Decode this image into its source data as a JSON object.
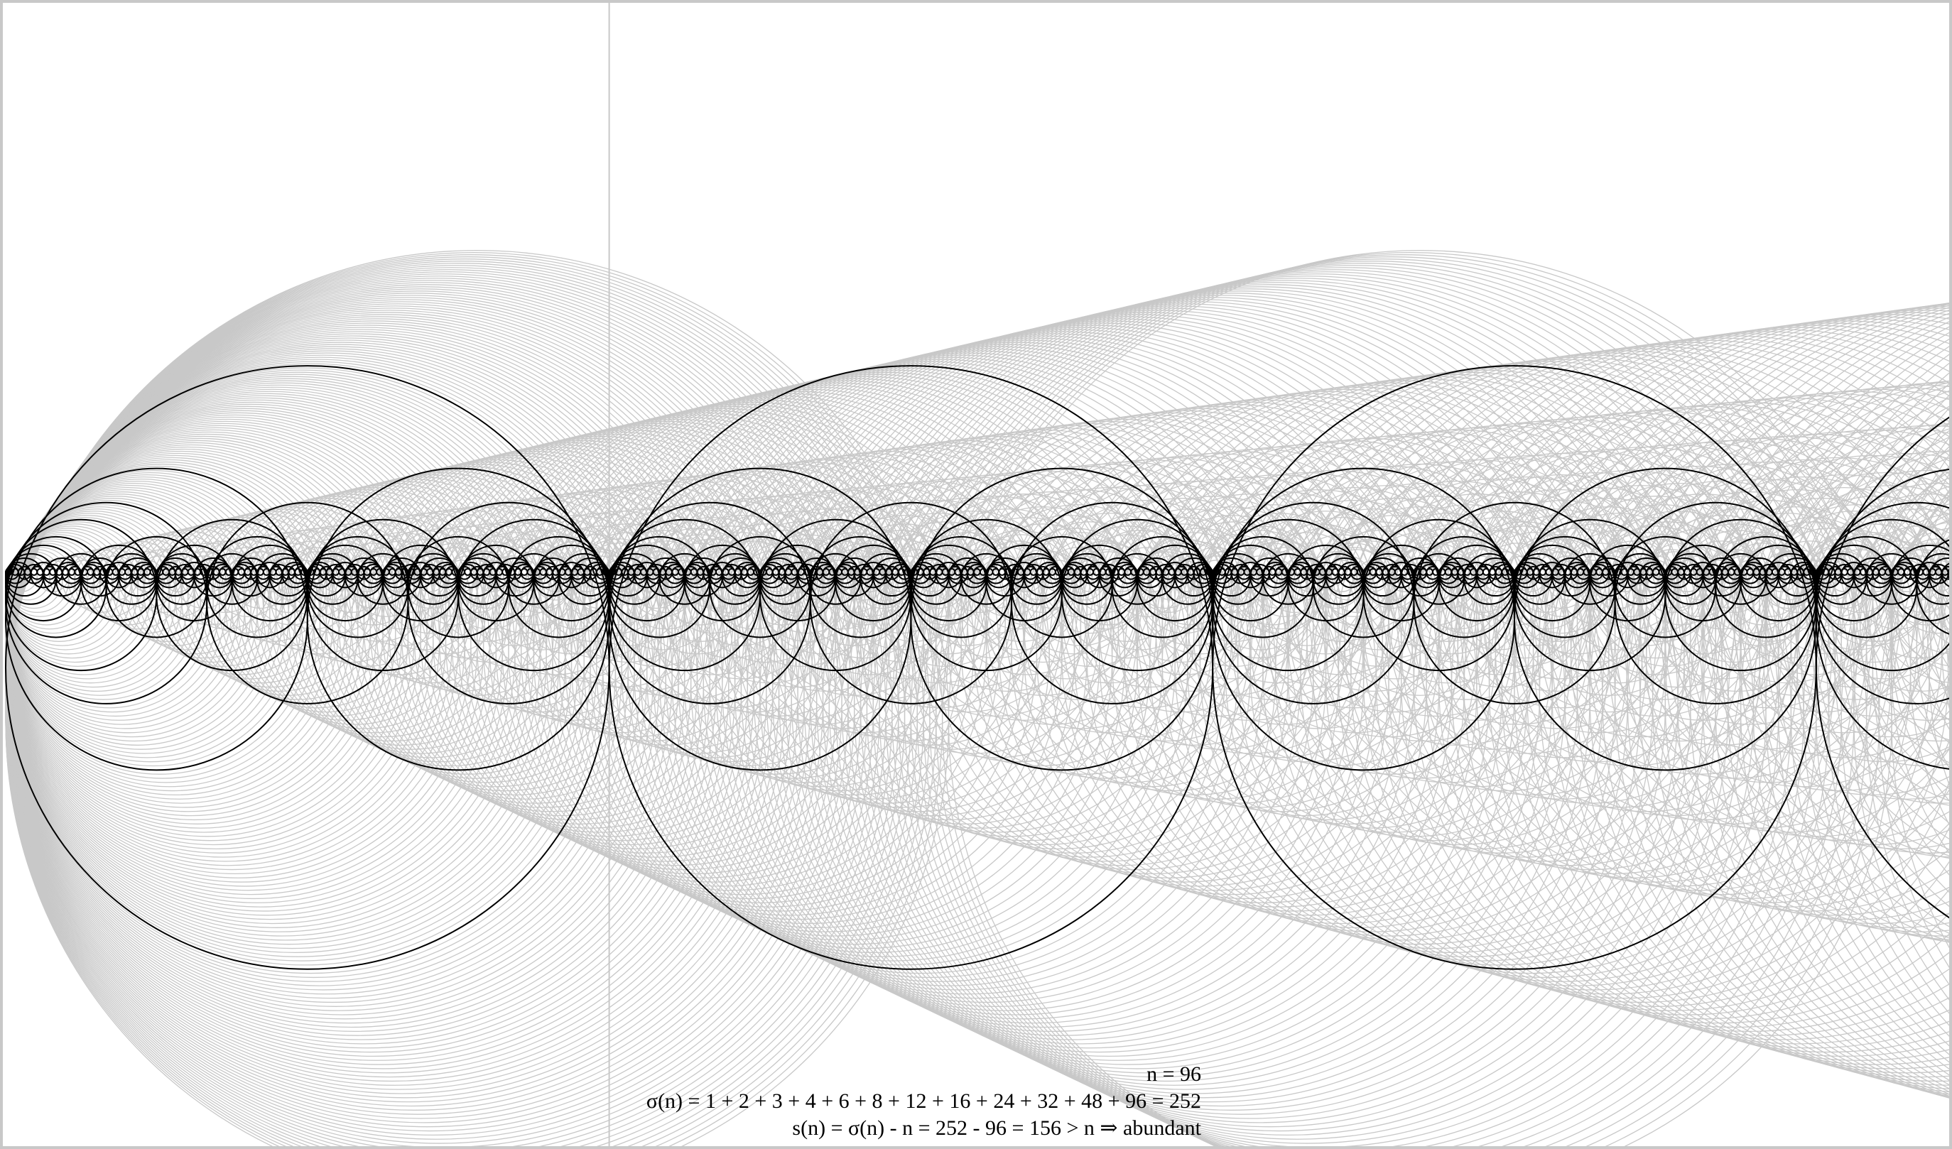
{
  "visualization": {
    "n": 96,
    "divisors": [
      1,
      2,
      3,
      4,
      6,
      8,
      12,
      16,
      24,
      32,
      48,
      96
    ],
    "colors": {
      "background": "#ffffff",
      "frame": "#c8c8c8",
      "highlight_circles": "#000000",
      "other_circles": "#c8c8c8",
      "guide_line": "#c8c8c8"
    }
  },
  "caption": {
    "line1": "n = 96",
    "line2": "σ(n) = 1 + 2 + 3 + 4 + 6 + 8 + 12 + 16 + 24 + 32 + 48 + 96 = 252",
    "line3": "s(n) = σ(n) - n = 252 - 96 = 156 > n ⇒ abundant"
  }
}
